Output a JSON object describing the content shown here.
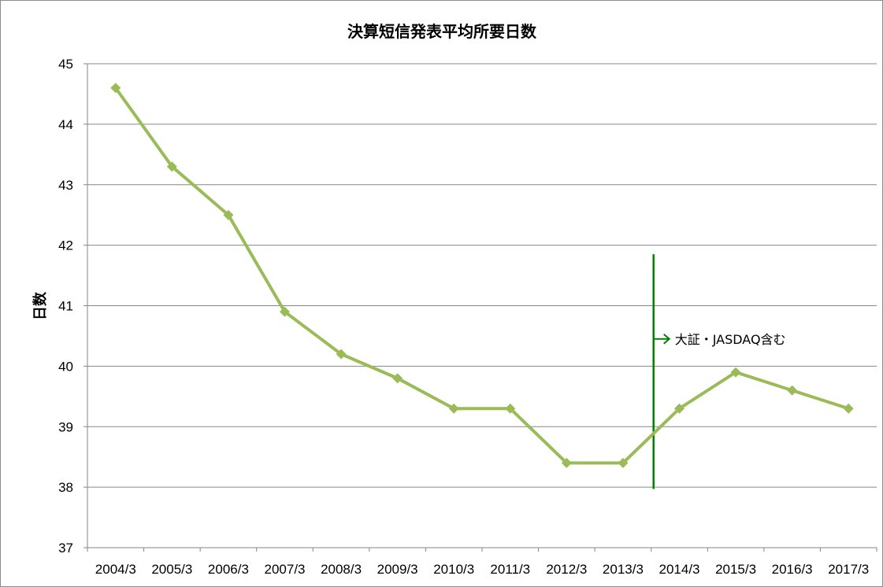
{
  "chart_data": {
    "type": "line",
    "title": "決算短信発表平均所要日数",
    "xlabel": "",
    "ylabel": "日数",
    "categories": [
      "2004/3",
      "2005/3",
      "2006/3",
      "2007/3",
      "2008/3",
      "2009/3",
      "2010/3",
      "2011/3",
      "2012/3",
      "2013/3",
      "2014/3",
      "2015/3",
      "2016/3",
      "2017/3"
    ],
    "series": [
      {
        "values": [
          44.6,
          43.3,
          42.5,
          40.9,
          40.2,
          39.8,
          39.3,
          39.3,
          38.4,
          38.4,
          39.3,
          39.9,
          39.6,
          39.3
        ]
      }
    ],
    "ylim": [
      37,
      45
    ],
    "yticks": [
      37,
      38,
      39,
      40,
      41,
      42,
      43,
      44,
      45
    ],
    "grid": true,
    "legend": "none",
    "colors": {
      "line": "#9bbb59",
      "marker": "#9bbb59",
      "grid": "#868686",
      "annotation": "#008000"
    },
    "annotation": {
      "text": "大証・JASDAQ含む",
      "divider_between": [
        "2013/3",
        "2014/3"
      ],
      "y_from": 41.85,
      "y_to": 37.97,
      "arrow_y": 40.45
    }
  }
}
